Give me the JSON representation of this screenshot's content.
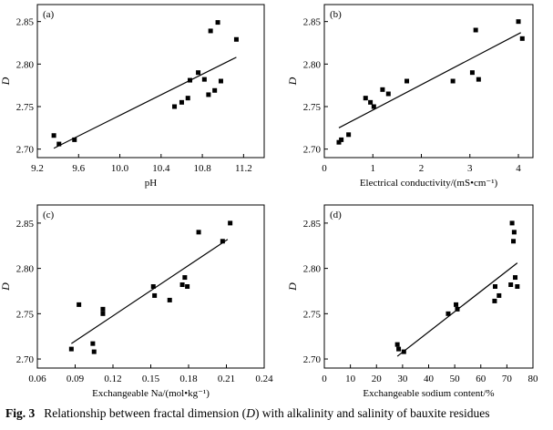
{
  "caption": {
    "figure_label": "Fig. 3",
    "text_before": "Relationship between fractal dimension (",
    "symbol": "D",
    "text_after": ") with alkalinity and salinity of bauxite residues"
  },
  "chart_data": [
    {
      "type": "scatter",
      "panel_label": "(a)",
      "xlabel": "pH",
      "ylabel": "D",
      "xlim": [
        9.2,
        11.4
      ],
      "ylim": [
        2.69,
        2.87
      ],
      "x_ticks": [
        "9.2",
        "9.6",
        "10.0",
        "10.4",
        "10.8",
        "11.2"
      ],
      "x_tick_values": [
        9.2,
        9.6,
        10.0,
        10.4,
        10.8,
        11.2
      ],
      "y_ticks": [
        "2.70",
        "2.75",
        "2.80",
        "2.85"
      ],
      "y_tick_values": [
        2.7,
        2.75,
        2.8,
        2.85
      ],
      "points": [
        {
          "x": 9.36,
          "y": 2.716
        },
        {
          "x": 9.41,
          "y": 2.706
        },
        {
          "x": 9.56,
          "y": 2.711
        },
        {
          "x": 10.53,
          "y": 2.75
        },
        {
          "x": 10.6,
          "y": 2.755
        },
        {
          "x": 10.66,
          "y": 2.76
        },
        {
          "x": 10.68,
          "y": 2.781
        },
        {
          "x": 10.76,
          "y": 2.79
        },
        {
          "x": 10.82,
          "y": 2.782
        },
        {
          "x": 10.86,
          "y": 2.764
        },
        {
          "x": 10.88,
          "y": 2.839
        },
        {
          "x": 10.92,
          "y": 2.769
        },
        {
          "x": 10.95,
          "y": 2.849
        },
        {
          "x": 10.98,
          "y": 2.78
        },
        {
          "x": 11.13,
          "y": 2.829
        }
      ],
      "fit_line": {
        "x": [
          9.36,
          11.13
        ],
        "y": [
          2.701,
          2.808
        ]
      }
    },
    {
      "type": "scatter",
      "panel_label": "(b)",
      "xlabel": "Electrical conductivity/(mS•cm⁻¹)",
      "ylabel": "D",
      "xlim": [
        0,
        4.3
      ],
      "ylim": [
        2.69,
        2.87
      ],
      "x_ticks": [
        "0",
        "1",
        "2",
        "3",
        "4"
      ],
      "x_tick_values": [
        0,
        1,
        2,
        3,
        4
      ],
      "y_ticks": [
        "2.70",
        "2.75",
        "2.80",
        "2.85"
      ],
      "y_tick_values": [
        2.7,
        2.75,
        2.8,
        2.85
      ],
      "points": [
        {
          "x": 0.3,
          "y": 2.708
        },
        {
          "x": 0.35,
          "y": 2.711
        },
        {
          "x": 0.5,
          "y": 2.717
        },
        {
          "x": 0.85,
          "y": 2.76
        },
        {
          "x": 0.95,
          "y": 2.755
        },
        {
          "x": 1.02,
          "y": 2.75
        },
        {
          "x": 1.2,
          "y": 2.77
        },
        {
          "x": 1.32,
          "y": 2.765
        },
        {
          "x": 1.7,
          "y": 2.78
        },
        {
          "x": 2.65,
          "y": 2.78
        },
        {
          "x": 3.05,
          "y": 2.79
        },
        {
          "x": 3.12,
          "y": 2.84
        },
        {
          "x": 3.18,
          "y": 2.782
        },
        {
          "x": 4.0,
          "y": 2.85
        },
        {
          "x": 4.08,
          "y": 2.83
        }
      ],
      "fit_line": {
        "x": [
          0.3,
          4.05
        ],
        "y": [
          2.725,
          2.837
        ]
      }
    },
    {
      "type": "scatter",
      "panel_label": "(c)",
      "xlabel": "Exchangeable Na/(mol•kg⁻¹)",
      "ylabel": "D",
      "xlim": [
        0.06,
        0.24
      ],
      "ylim": [
        2.69,
        2.87
      ],
      "x_ticks": [
        "0.06",
        "0.09",
        "0.12",
        "0.15",
        "0.18",
        "0.21",
        "0.24"
      ],
      "x_tick_values": [
        0.06,
        0.09,
        0.12,
        0.15,
        0.18,
        0.21,
        0.24
      ],
      "y_ticks": [
        "2.70",
        "2.75",
        "2.80",
        "2.85"
      ],
      "y_tick_values": [
        2.7,
        2.75,
        2.8,
        2.85
      ],
      "points": [
        {
          "x": 0.087,
          "y": 2.711
        },
        {
          "x": 0.093,
          "y": 2.76
        },
        {
          "x": 0.104,
          "y": 2.717
        },
        {
          "x": 0.105,
          "y": 2.708
        },
        {
          "x": 0.112,
          "y": 2.755
        },
        {
          "x": 0.112,
          "y": 2.75
        },
        {
          "x": 0.152,
          "y": 2.78
        },
        {
          "x": 0.153,
          "y": 2.77
        },
        {
          "x": 0.165,
          "y": 2.765
        },
        {
          "x": 0.175,
          "y": 2.782
        },
        {
          "x": 0.177,
          "y": 2.79
        },
        {
          "x": 0.179,
          "y": 2.78
        },
        {
          "x": 0.188,
          "y": 2.84
        },
        {
          "x": 0.207,
          "y": 2.83
        },
        {
          "x": 0.213,
          "y": 2.85
        }
      ],
      "fit_line": {
        "x": [
          0.087,
          0.211
        ],
        "y": [
          2.717,
          2.832
        ]
      }
    },
    {
      "type": "scatter",
      "panel_label": "(d)",
      "xlabel": "Exchangeable sodium content/%",
      "ylabel": "D",
      "xlim": [
        0,
        80
      ],
      "ylim": [
        2.69,
        2.87
      ],
      "x_ticks": [
        "0",
        "10",
        "20",
        "30",
        "40",
        "50",
        "60",
        "70",
        "80"
      ],
      "x_tick_values": [
        0,
        10,
        20,
        30,
        40,
        50,
        60,
        70,
        80
      ],
      "y_ticks": [
        "2.70",
        "2.75",
        "2.80",
        "2.85"
      ],
      "y_tick_values": [
        2.7,
        2.75,
        2.8,
        2.85
      ],
      "points": [
        {
          "x": 28,
          "y": 2.716
        },
        {
          "x": 28.5,
          "y": 2.711
        },
        {
          "x": 30.5,
          "y": 2.708
        },
        {
          "x": 47.5,
          "y": 2.75
        },
        {
          "x": 50.5,
          "y": 2.76
        },
        {
          "x": 51,
          "y": 2.755
        },
        {
          "x": 65.3,
          "y": 2.764
        },
        {
          "x": 65.5,
          "y": 2.78
        },
        {
          "x": 67,
          "y": 2.77
        },
        {
          "x": 71.5,
          "y": 2.782
        },
        {
          "x": 72,
          "y": 2.85
        },
        {
          "x": 72.5,
          "y": 2.83
        },
        {
          "x": 72.8,
          "y": 2.84
        },
        {
          "x": 73.2,
          "y": 2.79
        },
        {
          "x": 74,
          "y": 2.78
        }
      ],
      "fit_line": {
        "x": [
          28,
          74
        ],
        "y": [
          2.703,
          2.806
        ]
      }
    }
  ]
}
